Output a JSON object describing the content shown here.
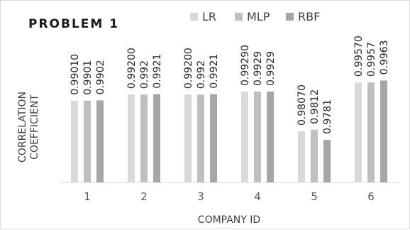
{
  "chart_data": {
    "type": "bar",
    "title": "PROBLEM 1",
    "xlabel": "COMPANY ID",
    "ylabel_lines": [
      "CORRELATION",
      "COEFFICIENT"
    ],
    "categories": [
      "1",
      "2",
      "3",
      "4",
      "5",
      "6"
    ],
    "series": [
      {
        "name": "LR",
        "color": "#d9d9d9",
        "values": [
          0.9901,
          0.992,
          0.992,
          0.9929,
          0.9807,
          0.9957
        ],
        "labels": [
          "0.99010",
          "0.99200",
          "0.99200",
          "0.99290",
          "0.98070",
          "0.99570"
        ]
      },
      {
        "name": "MLP",
        "color": "#bfbfbf",
        "values": [
          0.9901,
          0.992,
          0.992,
          0.9929,
          0.9812,
          0.9957
        ],
        "labels": [
          "0.9901",
          "0.992",
          "0.992",
          "0.9929",
          "0.9812",
          "0.9957"
        ]
      },
      {
        "name": "RBF",
        "color": "#a6a6a6",
        "values": [
          0.9902,
          0.9921,
          0.9921,
          0.9929,
          0.9781,
          0.9963
        ],
        "labels": [
          "0.9902",
          "0.9921",
          "0.9921",
          "0.9929",
          "0.9781",
          "0.9963"
        ]
      }
    ],
    "legend_position": "top-right",
    "grid": false,
    "y_axis_visible": false,
    "ylim": [
      0.965,
      0.999
    ]
  }
}
